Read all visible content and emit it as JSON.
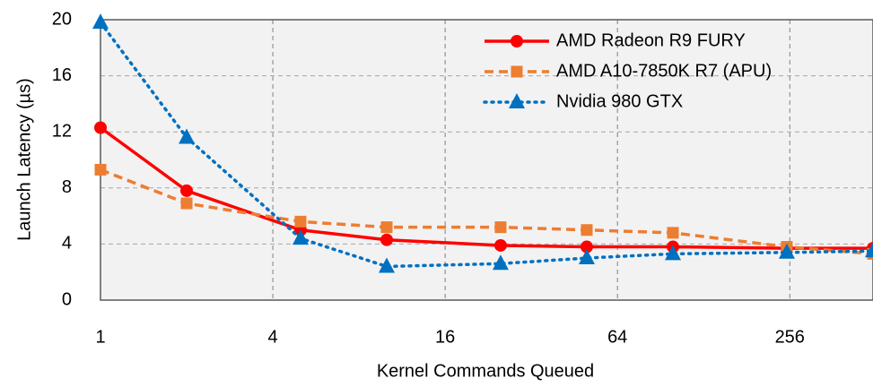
{
  "chart_data": {
    "type": "line",
    "xlabel": "Kernel Commands Queued",
    "ylabel": "Launch Latency (µs)",
    "x": [
      1,
      2,
      5,
      10,
      25,
      50,
      100,
      250,
      500
    ],
    "xscale": "log2",
    "xlim": [
      1,
      500
    ],
    "xticks": [
      1,
      4,
      16,
      64,
      256
    ],
    "ylim": [
      0,
      20
    ],
    "yticks": [
      0,
      4,
      8,
      12,
      16,
      20
    ],
    "grid": true,
    "legend": "upper right",
    "series": [
      {
        "name": "AMD Radeon R9 FURY",
        "color": "#ff0000",
        "dash": "solid",
        "marker": "circle",
        "values": [
          12.3,
          7.8,
          5.0,
          4.3,
          3.9,
          3.8,
          3.8,
          3.7,
          3.7
        ]
      },
      {
        "name": "AMD A10-7850K R7 (APU)",
        "color": "#ed7d31",
        "dash": "dashed",
        "marker": "square",
        "values": [
          9.3,
          6.9,
          5.6,
          5.2,
          5.2,
          5.0,
          4.8,
          3.8,
          3.3
        ]
      },
      {
        "name": "Nvidia 980 GTX",
        "color": "#0070c0",
        "dash": "dotted",
        "marker": "triangle",
        "values": [
          19.8,
          11.6,
          4.4,
          2.4,
          2.6,
          3.0,
          3.3,
          3.4,
          3.5
        ]
      }
    ]
  }
}
